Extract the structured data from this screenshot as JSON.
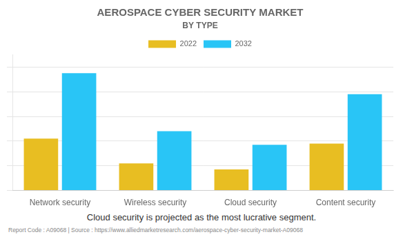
{
  "chart_data": {
    "type": "bar",
    "title": "AEROSPACE CYBER SECURITY MARKET",
    "subtitle": "BY TYPE",
    "categories": [
      "Network security",
      "Wireless security",
      "Cloud security",
      "Content security"
    ],
    "series": [
      {
        "name": "2022",
        "color": "#E8BE22",
        "values": [
          4.2,
          2.2,
          1.7,
          3.8
        ]
      },
      {
        "name": "2032",
        "color": "#29C5F6",
        "values": [
          9.5,
          4.8,
          3.7,
          7.8
        ]
      }
    ],
    "ylim": [
      0,
      11
    ],
    "yticks": [
      0,
      2,
      4,
      6,
      8,
      10
    ],
    "grid": true,
    "legend": "top",
    "tick_labels": "x",
    "annotations": [
      "Cloud security is projected as the most lucrative segment.",
      "Report Code : A09068  |  Source : https://www.alliedmarketresearch.com/aerospace-cyber-security-market-A09068"
    ]
  }
}
